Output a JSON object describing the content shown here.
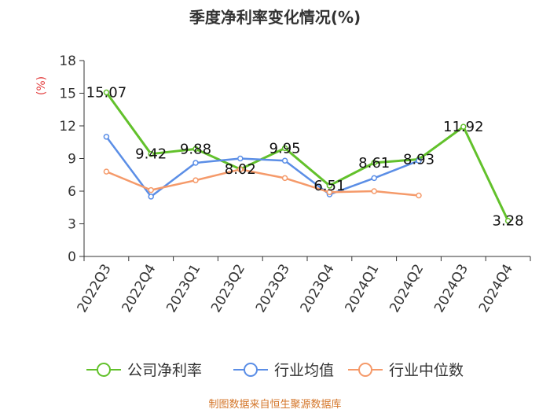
{
  "chart_data": {
    "type": "line",
    "title": "季度净利率变化情况(%)",
    "ylabel": "(%)",
    "ylim": [
      0,
      18
    ],
    "yticks": [
      0,
      3,
      6,
      9,
      12,
      15,
      18
    ],
    "categories": [
      "2022Q3",
      "2022Q4",
      "2023Q1",
      "2023Q2",
      "2023Q3",
      "2023Q4",
      "2024Q1",
      "2024Q2",
      "2024Q3",
      "2024Q4"
    ],
    "series": [
      {
        "name": "公司净利率",
        "color": "#62c12b",
        "values": [
          15.07,
          9.42,
          9.88,
          8.02,
          9.95,
          6.51,
          8.61,
          8.93,
          11.92,
          3.28
        ],
        "show_labels": true
      },
      {
        "name": "行业均值",
        "color": "#5b8ee6",
        "values": [
          11.0,
          5.5,
          8.6,
          9.0,
          8.8,
          5.7,
          7.2,
          8.8,
          null,
          null
        ],
        "show_labels": false
      },
      {
        "name": "行业中位数",
        "color": "#f59a6a",
        "values": [
          7.8,
          6.1,
          7.0,
          8.0,
          7.2,
          5.9,
          6.0,
          5.6,
          null,
          null
        ],
        "show_labels": false
      }
    ],
    "grid": false,
    "legend_position": "bottom"
  },
  "footer": "制图数据来自恒生聚源数据库"
}
